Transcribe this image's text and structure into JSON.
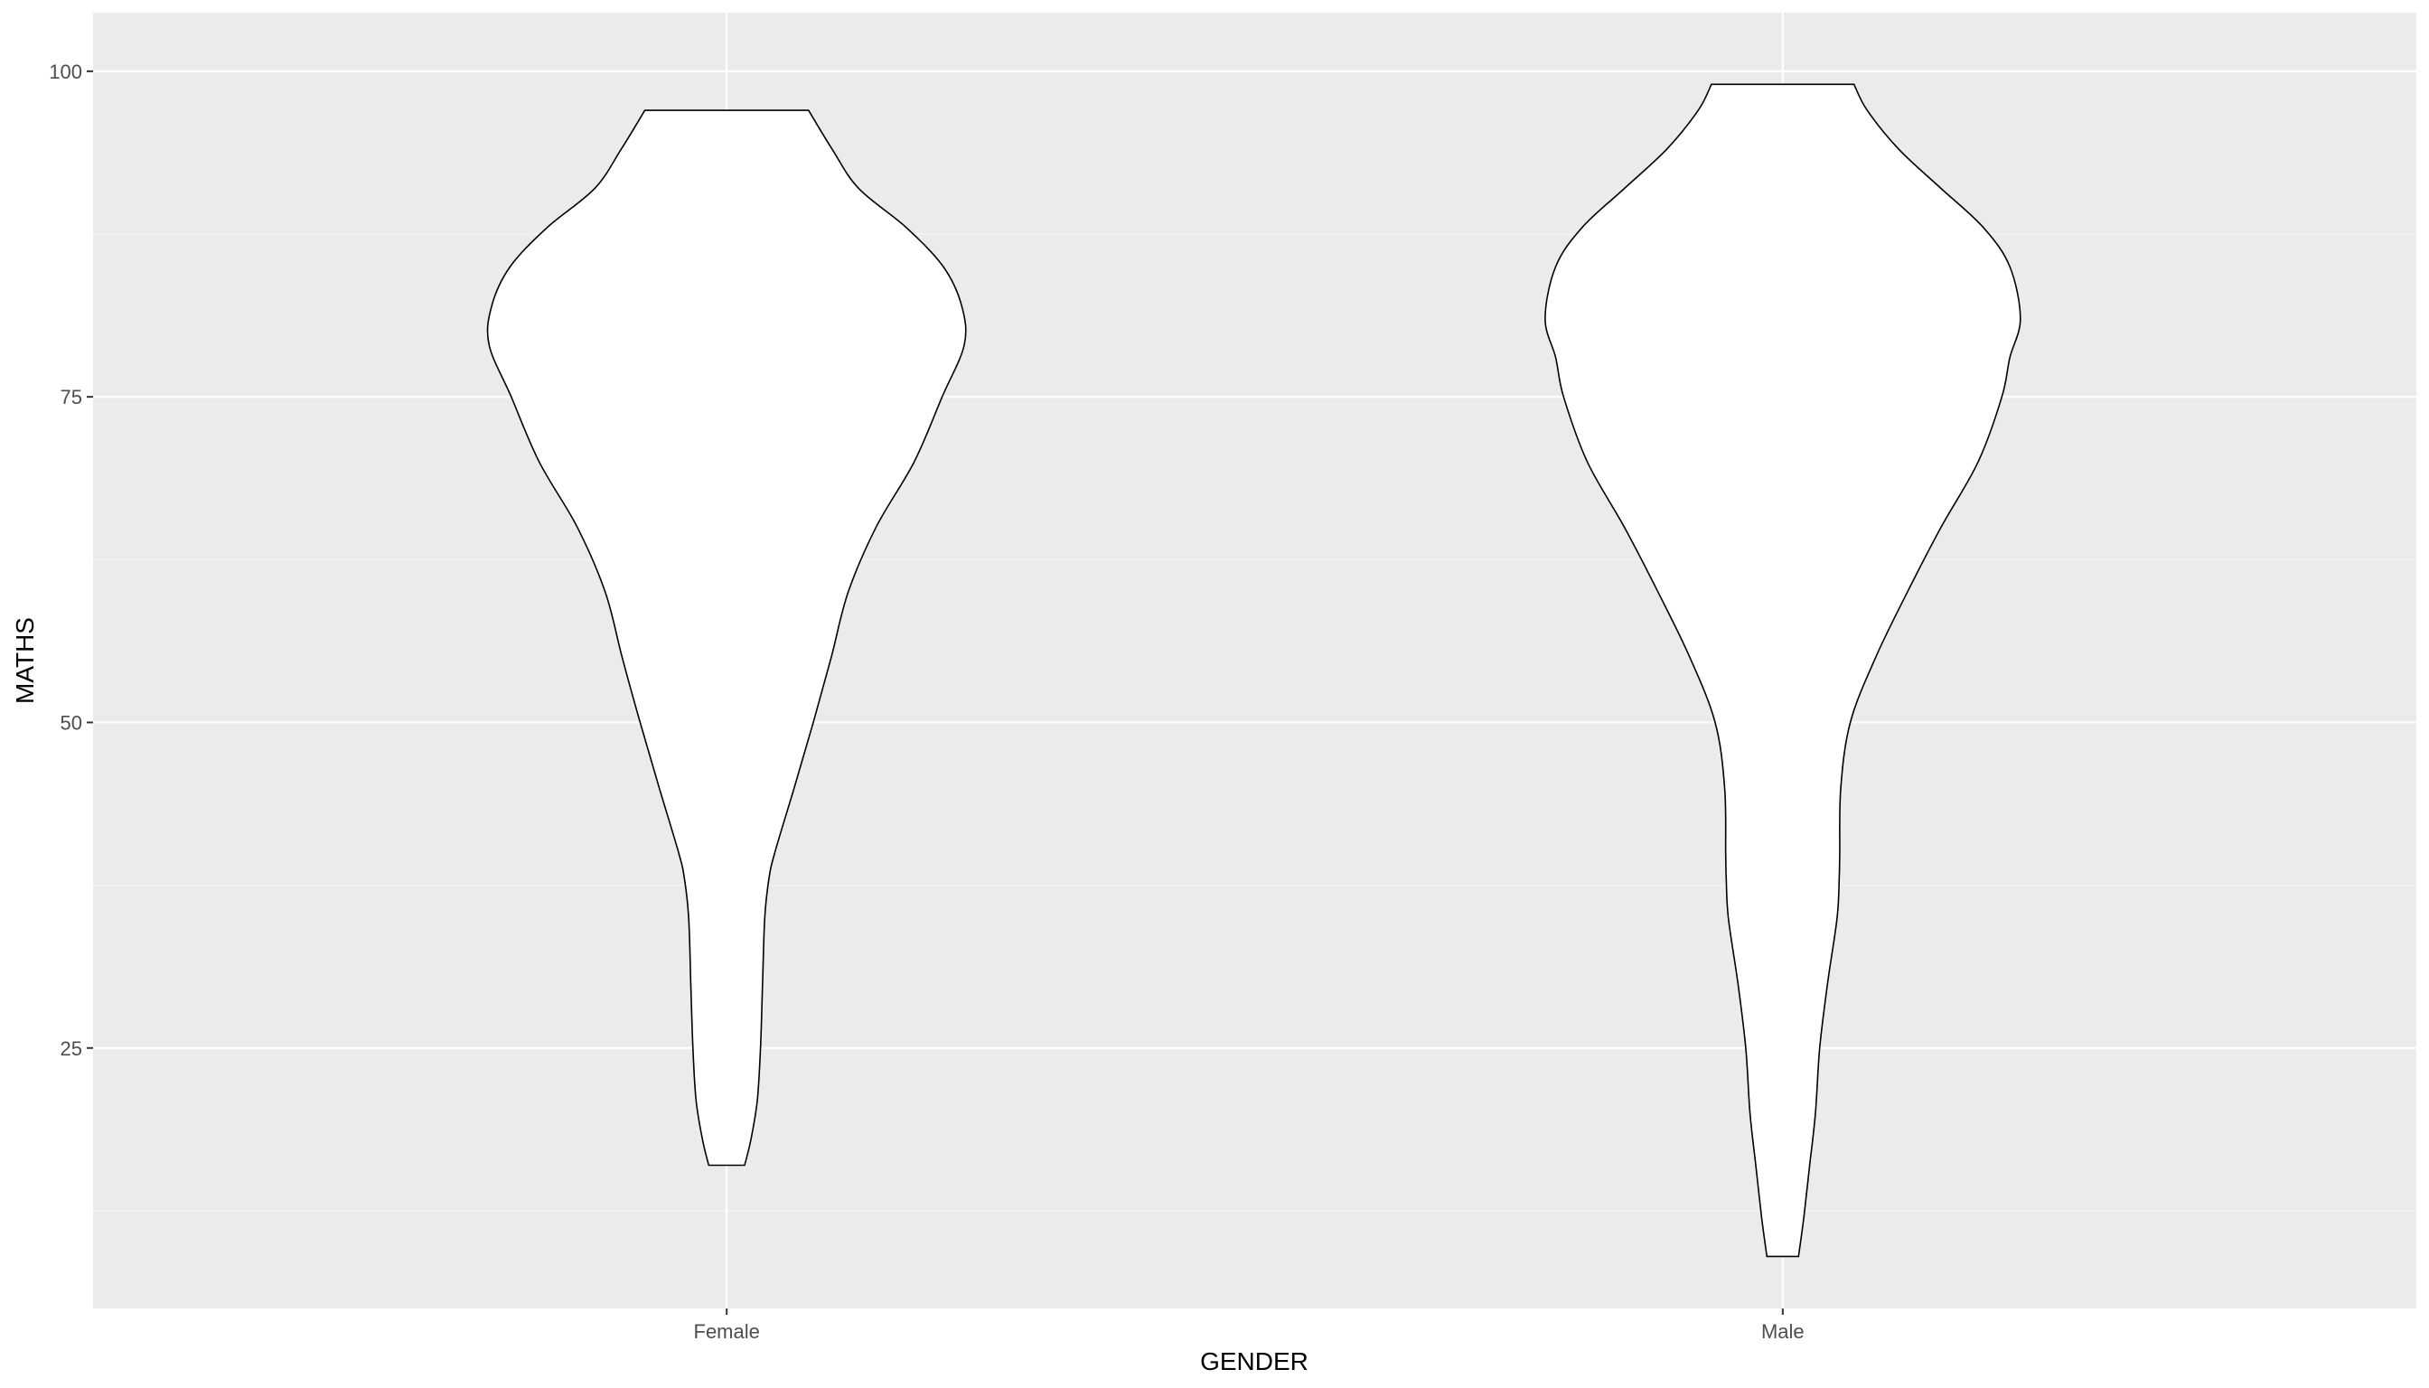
{
  "chart_data": {
    "type": "violin",
    "xlabel": "GENDER",
    "ylabel": "MATHS",
    "categories": [
      "Female",
      "Male"
    ],
    "ylim": [
      5,
      104.5
    ],
    "y_ticks": [
      25,
      50,
      75,
      100
    ],
    "y_tick_labels": [
      "25",
      "50",
      "75",
      "100"
    ],
    "grid": true,
    "colors": {
      "panel_background": "#ebebeb",
      "grid_major": "#ffffff",
      "grid_minor": "#f5f5f5",
      "violin_fill": "#ffffff",
      "violin_outline": "#000000"
    },
    "violins": [
      {
        "category": "Female",
        "min": 16,
        "max": 97,
        "density_half_width": [
          {
            "y": 16,
            "w": 0.034
          },
          {
            "y": 18,
            "w": 0.046
          },
          {
            "y": 21,
            "w": 0.058
          },
          {
            "y": 25,
            "w": 0.064
          },
          {
            "y": 30,
            "w": 0.068
          },
          {
            "y": 35,
            "w": 0.072
          },
          {
            "y": 38,
            "w": 0.08
          },
          {
            "y": 40,
            "w": 0.091
          },
          {
            "y": 45,
            "w": 0.128
          },
          {
            "y": 50,
            "w": 0.164
          },
          {
            "y": 55,
            "w": 0.198
          },
          {
            "y": 60,
            "w": 0.23
          },
          {
            "y": 65,
            "w": 0.283
          },
          {
            "y": 70,
            "w": 0.355
          },
          {
            "y": 75,
            "w": 0.408
          },
          {
            "y": 79,
            "w": 0.45
          },
          {
            "y": 82,
            "w": 0.445
          },
          {
            "y": 85,
            "w": 0.41
          },
          {
            "y": 88,
            "w": 0.34
          },
          {
            "y": 91,
            "w": 0.25
          },
          {
            "y": 94,
            "w": 0.2
          },
          {
            "y": 97,
            "w": 0.155
          }
        ]
      },
      {
        "category": "Male",
        "min": 9,
        "max": 99,
        "density_half_width": [
          {
            "y": 9,
            "w": 0.03
          },
          {
            "y": 12,
            "w": 0.04
          },
          {
            "y": 16,
            "w": 0.051
          },
          {
            "y": 20,
            "w": 0.062
          },
          {
            "y": 25,
            "w": 0.07
          },
          {
            "y": 30,
            "w": 0.085
          },
          {
            "y": 35,
            "w": 0.103
          },
          {
            "y": 38,
            "w": 0.107
          },
          {
            "y": 40,
            "w": 0.108
          },
          {
            "y": 45,
            "w": 0.11
          },
          {
            "y": 50,
            "w": 0.128
          },
          {
            "y": 55,
            "w": 0.176
          },
          {
            "y": 60,
            "w": 0.236
          },
          {
            "y": 65,
            "w": 0.3
          },
          {
            "y": 70,
            "w": 0.37
          },
          {
            "y": 75,
            "w": 0.415
          },
          {
            "y": 78,
            "w": 0.43
          },
          {
            "y": 81,
            "w": 0.45
          },
          {
            "y": 85,
            "w": 0.43
          },
          {
            "y": 88,
            "w": 0.38
          },
          {
            "y": 91,
            "w": 0.3
          },
          {
            "y": 94,
            "w": 0.22
          },
          {
            "y": 97,
            "w": 0.16
          },
          {
            "y": 99,
            "w": 0.135
          }
        ]
      }
    ]
  }
}
